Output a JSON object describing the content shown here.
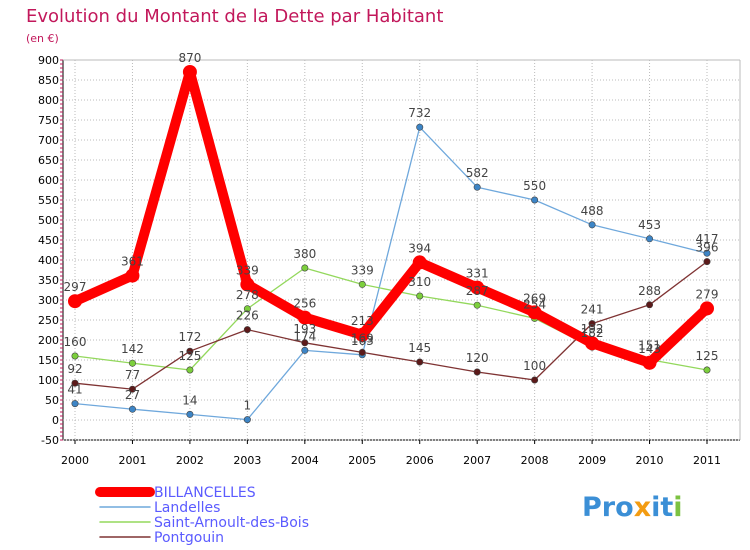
{
  "chart_data": {
    "type": "line",
    "title": "Evolution du Montant de la Dette par Habitant",
    "subtitle": "(en €)",
    "xlabel": "",
    "ylabel": "",
    "x": [
      "2000",
      "2001",
      "2002",
      "2003",
      "2004",
      "2005",
      "2006",
      "2007",
      "2008",
      "2009",
      "2010",
      "2011"
    ],
    "ylim": [
      -50,
      900
    ],
    "yticks": [
      -50,
      0,
      50,
      100,
      150,
      200,
      250,
      300,
      350,
      400,
      450,
      500,
      550,
      600,
      650,
      700,
      750,
      800,
      850,
      900
    ],
    "grid": true,
    "legend_position": "bottom-left",
    "series": [
      {
        "name": "BILLANCELLES",
        "color": "#ff0000",
        "marker_color": "#ff0000",
        "values": [
          297,
          361,
          870,
          339,
          256,
          213,
          394,
          331,
          269,
          192,
          143,
          279
        ],
        "labels": [
          "297",
          "361",
          "870",
          "339",
          "256",
          "213",
          "394",
          "331",
          "269",
          "192",
          "143",
          "279"
        ],
        "bold": true
      },
      {
        "name": "Landelles",
        "color": "#6fa8dc",
        "marker_color": "#3d85c6",
        "values": [
          41,
          27,
          14,
          1,
          174,
          163,
          732,
          582,
          550,
          488,
          453,
          417
        ],
        "labels": [
          "41",
          "27",
          "14",
          "1",
          "174",
          "163",
          "732",
          "582",
          "550",
          "488",
          "453",
          "417"
        ],
        "bold": false
      },
      {
        "name": "Saint-Arnoult-des-Bois",
        "color": "#93d85c",
        "marker_color": "#7ccf3c",
        "values": [
          160,
          142,
          125,
          278,
          380,
          339,
          310,
          287,
          254,
          182,
          151,
          125
        ],
        "labels": [
          "160",
          "142",
          "125",
          "278",
          "380",
          "339",
          "310",
          "287",
          "254",
          "182",
          "151",
          "125"
        ],
        "bold": false
      },
      {
        "name": "Pontgouin",
        "color": "#7f3333",
        "marker_color": "#5c1a1a",
        "values": [
          92,
          77,
          172,
          226,
          193,
          169,
          145,
          120,
          100,
          241,
          288,
          396
        ],
        "labels": [
          "92",
          "77",
          "172",
          "226",
          "193",
          "169",
          "145",
          "120",
          "100",
          "241",
          "288",
          "396"
        ],
        "bold": false
      }
    ]
  },
  "branding": {
    "logo_text": "Proxiti"
  },
  "colors": {
    "title": "#c2185b",
    "axis": "#000000",
    "grid": "#bbbbbb",
    "tick_text": "#000000",
    "legend_text": "#5b5bff",
    "value_label": "#444444",
    "logo_blue": "#3b8fd6",
    "logo_orange": "#f39c12",
    "logo_green": "#7cc242"
  }
}
